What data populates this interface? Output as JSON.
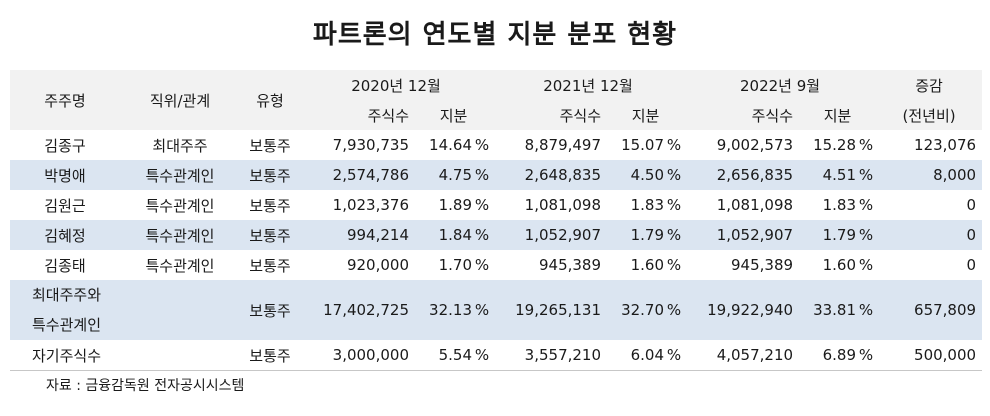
{
  "title": "파트론의 연도별 지분 분포 현황",
  "headers": {
    "shareholder": "주주명",
    "position": "직위/관계",
    "type": "유형",
    "period1": "2020년 12월",
    "period2": "2021년 12월",
    "period3": "2022년 9월",
    "change_top": "증감",
    "change_bottom": "(전년비)",
    "shares": "주식수",
    "stake": "지분"
  },
  "percent_sign": "%",
  "rows": [
    {
      "name": "김종구",
      "position": "최대주주",
      "type": "보통주",
      "s1": "7,930,735",
      "p1": "14.64",
      "s2": "8,879,497",
      "p2": "15.07",
      "s3": "9,002,573",
      "p3": "15.28",
      "change": "123,076"
    },
    {
      "name": "박명애",
      "position": "특수관계인",
      "type": "보통주",
      "s1": "2,574,786",
      "p1": "4.75",
      "s2": "2,648,835",
      "p2": "4.50",
      "s3": "2,656,835",
      "p3": "4.51",
      "change": "8,000"
    },
    {
      "name": "김원근",
      "position": "특수관계인",
      "type": "보통주",
      "s1": "1,023,376",
      "p1": "1.89",
      "s2": "1,081,098",
      "p2": "1.83",
      "s3": "1,081,098",
      "p3": "1.83",
      "change": "0"
    },
    {
      "name": "김혜정",
      "position": "특수관계인",
      "type": "보통주",
      "s1": "994,214",
      "p1": "1.84",
      "s2": "1,052,907",
      "p2": "1.79",
      "s3": "1,052,907",
      "p3": "1.79",
      "change": "0"
    },
    {
      "name": "김종태",
      "position": "특수관계인",
      "type": "보통주",
      "s1": "920,000",
      "p1": "1.70",
      "s2": "945,389",
      "p2": "1.60",
      "s3": "945,389",
      "p3": "1.60",
      "change": "0"
    }
  ],
  "total": {
    "name_line1": "최대주주와",
    "name_line2": "특수관계인",
    "type": "보통주",
    "s1": "17,402,725",
    "p1": "32.13",
    "s2": "19,265,131",
    "p2": "32.70",
    "s3": "19,922,940",
    "p3": "33.81",
    "change": "657,809"
  },
  "treasury": {
    "name": "자기주식수",
    "type": "보통주",
    "s1": "3,000,000",
    "p1": "5.54",
    "s2": "3,557,210",
    "p2": "6.04",
    "s3": "4,057,210",
    "p3": "6.89",
    "change": "500,000"
  },
  "source": "자료 : 금융감독원 전자공시시스템"
}
